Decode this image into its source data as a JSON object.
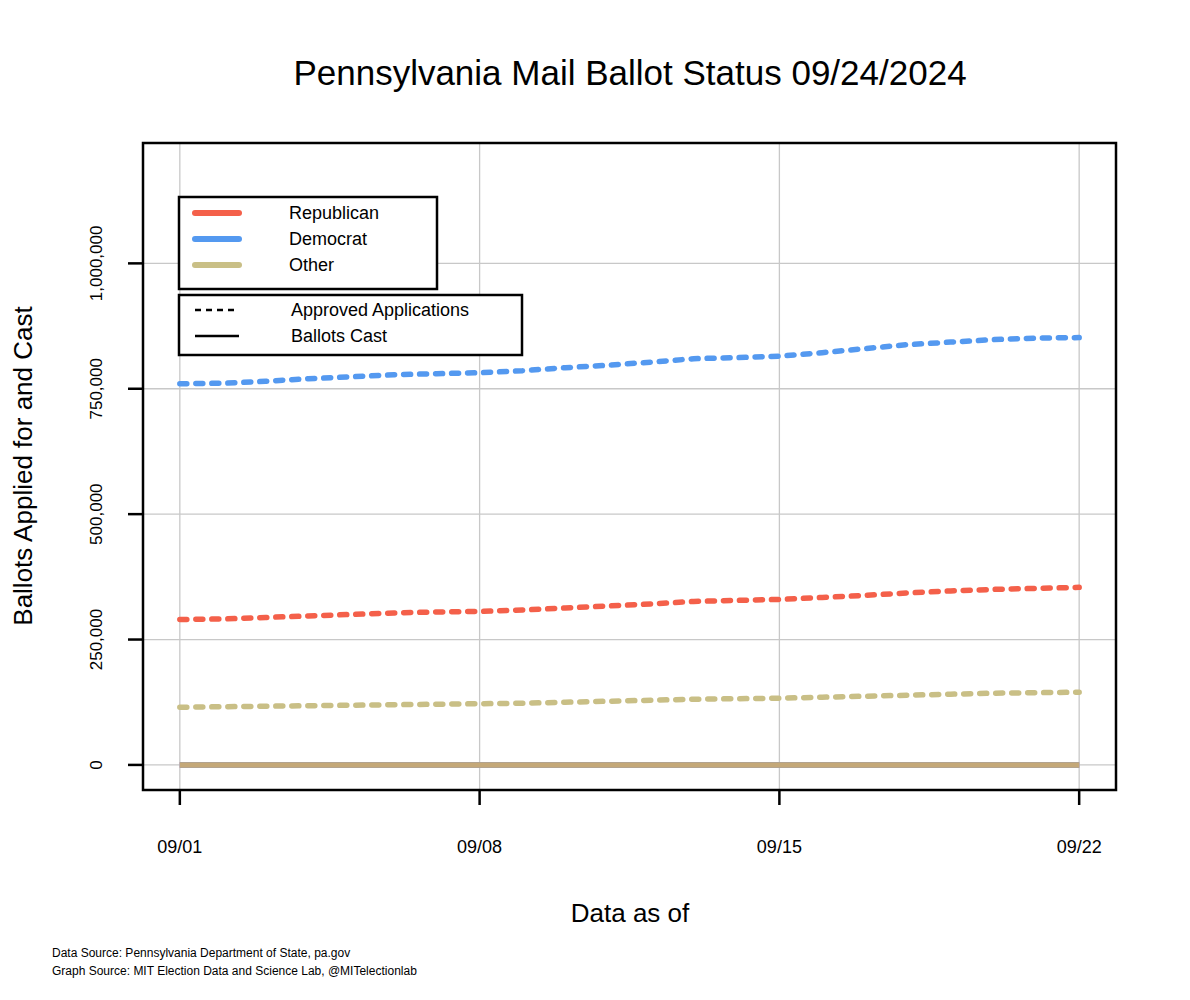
{
  "chart_data": {
    "type": "line",
    "title": "Pennsylvania Mail Ballot Status 09/24/2024",
    "x_label": "Data as of",
    "y_label": "Ballots Applied for and Cast",
    "notes": [
      "Data Source: Pennsylvania Department of State, pa.gov",
      "Graph Source: MIT Election Data and Science Lab, @MITelectionlab"
    ],
    "categories": [
      "09/01",
      null,
      null,
      null,
      null,
      null,
      null,
      "09/08",
      null,
      null,
      null,
      null,
      null,
      null,
      "09/15",
      null,
      null,
      null,
      null,
      null,
      null,
      "09/22"
    ],
    "series": [
      {
        "name": "Republican",
        "color": "#f4604a",
        "line_style": "dotted",
        "values": [
          290000,
          291000,
          294000,
          297000,
          300000,
          303000,
          305000,
          306000,
          309000,
          313000,
          317000,
          321000,
          326000,
          328000,
          330000,
          334000,
          338000,
          343000,
          347000,
          350000,
          352000,
          354000
        ]
      },
      {
        "name": "Democrat",
        "color": "#5499f0",
        "line_style": "dotted",
        "values": [
          760000,
          761000,
          765000,
          770000,
          774000,
          778000,
          780000,
          782000,
          786000,
          792000,
          797000,
          803000,
          810000,
          812000,
          815000,
          822000,
          830000,
          838000,
          843000,
          848000,
          851000,
          852000
        ]
      },
      {
        "name": "Other",
        "color": "#c9bf86",
        "line_style": "dotted",
        "values": [
          115000,
          116000,
          117000,
          118000,
          119000,
          120000,
          121000,
          122000,
          123000,
          125000,
          127000,
          129000,
          131000,
          132000,
          133000,
          135000,
          137000,
          139000,
          141000,
          143000,
          144000,
          145000
        ]
      },
      {
        "name": "Republican",
        "color": "#f4604a",
        "line_style": "solid",
        "values": [
          0,
          0,
          0,
          0,
          0,
          0,
          0,
          0,
          0,
          0,
          0,
          0,
          0,
          0,
          0,
          0,
          0,
          0,
          0,
          0,
          0,
          0
        ]
      },
      {
        "name": "Democrat",
        "color": "#5499f0",
        "line_style": "solid",
        "values": [
          0,
          0,
          0,
          0,
          0,
          0,
          0,
          0,
          0,
          0,
          0,
          0,
          0,
          0,
          0,
          0,
          0,
          0,
          0,
          0,
          0,
          0
        ]
      },
      {
        "name": "Other",
        "color": "#c4a878",
        "line_style": "solid",
        "values": [
          0,
          0,
          0,
          0,
          0,
          0,
          0,
          0,
          0,
          0,
          0,
          0,
          0,
          0,
          0,
          0,
          0,
          0,
          0,
          0,
          0,
          0
        ]
      }
    ],
    "line_styles": [
      {
        "label": "Approved Applications",
        "line_style": "dotted"
      },
      {
        "label": "Ballots Cast",
        "line_style": "solid"
      }
    ],
    "ylim": [
      -50000,
      1240000
    ],
    "yticks": [
      0,
      {
        "value": 250000,
        "label": "250,000"
      },
      {
        "value": 500000,
        "label": "500,000"
      },
      {
        "value": 750000,
        "label": "750,000"
      },
      {
        "value": 1000000,
        "label": "1,000,000"
      }
    ],
    "grid": true,
    "legend": "top-left"
  }
}
